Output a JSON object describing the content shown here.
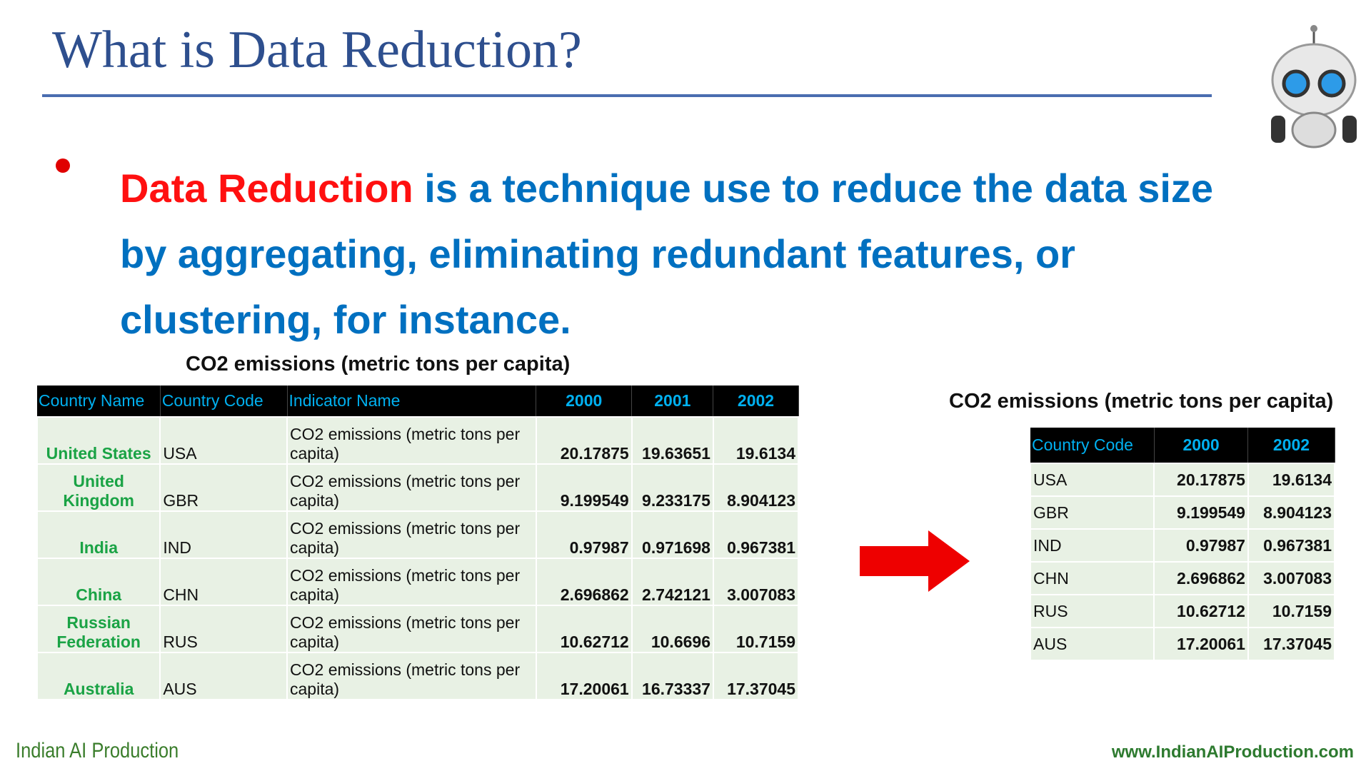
{
  "title": "What is Data Reduction?",
  "bullet": {
    "highlight": "Data Reduction",
    "text": "is a technique use to reduce the data size by aggregating, eliminating redundant features, or clustering, for instance."
  },
  "left_table": {
    "caption": "CO2 emissions (metric tons per capita)",
    "columns": [
      "Country Name",
      "Country Code",
      "Indicator Name",
      "2000",
      "2001",
      "2002"
    ],
    "rows": [
      [
        "United States",
        "USA",
        "CO2 emissions (metric tons per capita)",
        "20.17875",
        "19.63651",
        "19.6134"
      ],
      [
        "United Kingdom",
        "GBR",
        "CO2 emissions (metric tons per capita)",
        "9.199549",
        "9.233175",
        "8.904123"
      ],
      [
        "India",
        "IND",
        "CO2 emissions (metric tons per capita)",
        "0.97987",
        "0.971698",
        "0.967381"
      ],
      [
        "China",
        "CHN",
        "CO2 emissions (metric tons per capita)",
        "2.696862",
        "2.742121",
        "3.007083"
      ],
      [
        "Russian Federation",
        "RUS",
        "CO2 emissions (metric tons per capita)",
        "10.62712",
        "10.6696",
        "10.7159"
      ],
      [
        "Australia",
        "AUS",
        "CO2 emissions (metric tons per capita)",
        "17.20061",
        "16.73337",
        "17.37045"
      ]
    ]
  },
  "right_table": {
    "caption": "CO2 emissions (metric tons per capita)",
    "columns": [
      "Country Code",
      "2000",
      "2002"
    ],
    "rows": [
      [
        "USA",
        "20.17875",
        "19.6134"
      ],
      [
        "GBR",
        "9.199549",
        "8.904123"
      ],
      [
        "IND",
        "0.97987",
        "0.967381"
      ],
      [
        "CHN",
        "2.696862",
        "3.007083"
      ],
      [
        "RUS",
        "10.62712",
        "10.7159"
      ],
      [
        "AUS",
        "17.20061",
        "17.37045"
      ]
    ]
  },
  "footer": {
    "brand": "Indian AI Production",
    "url": "www.IndianAIProduction.com"
  }
}
